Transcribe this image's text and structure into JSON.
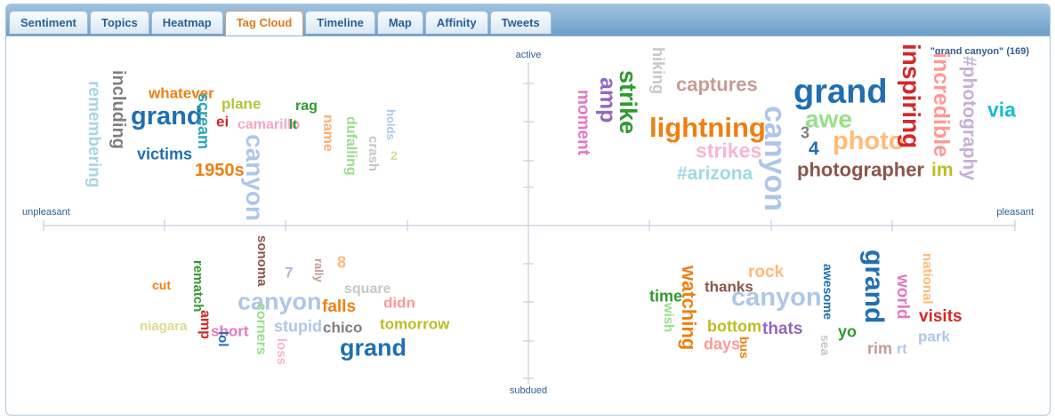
{
  "tabs": [
    {
      "label": "Sentiment"
    },
    {
      "label": "Topics"
    },
    {
      "label": "Heatmap"
    },
    {
      "label": "Tag Cloud"
    },
    {
      "label": "Timeline"
    },
    {
      "label": "Map"
    },
    {
      "label": "Affinity"
    },
    {
      "label": "Tweets"
    }
  ],
  "active_tab": "Tag Cloud",
  "axes": {
    "top": "active",
    "bottom": "subdued",
    "left": "unpleasant",
    "right": "pleasant"
  },
  "query_label": "\"grand canyon\" (169)",
  "words": [
    {
      "t": "including",
      "c": "#7f7f7f",
      "r": true
    },
    {
      "t": "remembering",
      "c": "#a6d6e6",
      "r": true
    },
    {
      "t": "whatever",
      "c": "#f07f10"
    },
    {
      "t": "grand",
      "c": "#1f6fb2"
    },
    {
      "t": "scream",
      "c": "#2aa5b8",
      "r": true
    },
    {
      "t": "plane",
      "c": "#b5c23a"
    },
    {
      "t": "rag",
      "c": "#2e9a2e"
    },
    {
      "t": "ei",
      "c": "#d62728"
    },
    {
      "t": "camarillo",
      "c": "#f4a6c8"
    },
    {
      "t": "lt",
      "c": "#2e9a2e"
    },
    {
      "t": "name",
      "c": "#ffb070",
      "r": true
    },
    {
      "t": "dufalling",
      "c": "#98df8a",
      "r": true
    },
    {
      "t": "holds",
      "c": "#aec7e8",
      "r": true
    },
    {
      "t": "crash",
      "c": "#c7c7c7",
      "r": true
    },
    {
      "t": "2",
      "c": "#dbdb8d"
    },
    {
      "t": "victims",
      "c": "#1f6fb2"
    },
    {
      "t": "1950s",
      "c": "#f07f10"
    },
    {
      "t": "canyon",
      "c": "#aec7e8",
      "r": true
    },
    {
      "t": "hiking",
      "c": "#c7c7c7",
      "r": true
    },
    {
      "t": "amp",
      "c": "#9467bd",
      "r": true
    },
    {
      "t": "strike",
      "c": "#2e9a2e",
      "r": true
    },
    {
      "t": "moment",
      "c": "#e377c2",
      "r": true
    },
    {
      "t": "captures",
      "c": "#c49c94"
    },
    {
      "t": "lightning",
      "c": "#f07f10"
    },
    {
      "t": "strikes",
      "c": "#f7b6d2"
    },
    {
      "t": "#arizona",
      "c": "#9edae5"
    },
    {
      "t": "canyon",
      "c": "#aec7e8",
      "r": true
    },
    {
      "t": "grand",
      "c": "#1f6fb2"
    },
    {
      "t": "awe",
      "c": "#98df8a"
    },
    {
      "t": "3",
      "c": "#7f7f7f"
    },
    {
      "t": "4",
      "c": "#1f6fb2"
    },
    {
      "t": "photo",
      "c": "#ffbb78"
    },
    {
      "t": "photographer",
      "c": "#8c564b"
    },
    {
      "t": "inspiring",
      "c": "#d62728",
      "r": true
    },
    {
      "t": "incredible",
      "c": "#ff9896",
      "r": true
    },
    {
      "t": "im",
      "c": "#bcbd22"
    },
    {
      "t": "#photography",
      "c": "#c5b0d5",
      "r": true
    },
    {
      "t": "via",
      "c": "#17becf"
    },
    {
      "t": "sonoma",
      "c": "#8c564b",
      "r": true
    },
    {
      "t": "cut",
      "c": "#f07f10"
    },
    {
      "t": "rematch",
      "c": "#2e9a2e",
      "r": true
    },
    {
      "t": "amp",
      "c": "#d62728",
      "r": true
    },
    {
      "t": "niagara",
      "c": "#dbdb8d"
    },
    {
      "t": "canyon",
      "c": "#aec7e8"
    },
    {
      "t": "7",
      "c": "#c5b0d5"
    },
    {
      "t": "rally",
      "c": "#c49c94",
      "r": true
    },
    {
      "t": "8",
      "c": "#ffbb78"
    },
    {
      "t": "square",
      "c": "#c7c7c7"
    },
    {
      "t": "falls",
      "c": "#f07f10"
    },
    {
      "t": "didn",
      "c": "#ff9896"
    },
    {
      "t": "short",
      "c": "#e377c2"
    },
    {
      "t": "lol",
      "c": "#1f6fb2",
      "r": true
    },
    {
      "t": "corners",
      "c": "#98df8a",
      "r": true
    },
    {
      "t": "stupid",
      "c": "#aec7e8"
    },
    {
      "t": "chico",
      "c": "#7f7f7f"
    },
    {
      "t": "tomorrow",
      "c": "#bcbd22"
    },
    {
      "t": "loss",
      "c": "#f7b6d2",
      "r": true
    },
    {
      "t": "grand",
      "c": "#1f6fb2"
    },
    {
      "t": "rock",
      "c": "#ffbb78"
    },
    {
      "t": "thanks",
      "c": "#8c564b"
    },
    {
      "t": "time",
      "c": "#2e9a2e"
    },
    {
      "t": "watching",
      "c": "#f07f10",
      "r": true
    },
    {
      "t": "wish",
      "c": "#98df8a",
      "r": true
    },
    {
      "t": "canyon",
      "c": "#aec7e8"
    },
    {
      "t": "bottom",
      "c": "#bcbd22"
    },
    {
      "t": "days",
      "c": "#ff9896"
    },
    {
      "t": "bus",
      "c": "#f07f10",
      "r": true
    },
    {
      "t": "thats",
      "c": "#9467bd"
    },
    {
      "t": "awesome",
      "c": "#1f6fb2",
      "r": true
    },
    {
      "t": "sea",
      "c": "#c7c7c7",
      "r": true
    },
    {
      "t": "yo",
      "c": "#2e9a2e"
    },
    {
      "t": "grand",
      "c": "#1f6fb2",
      "r": true
    },
    {
      "t": "world",
      "c": "#e377c2",
      "r": true
    },
    {
      "t": "national",
      "c": "#ffbb78",
      "r": true
    },
    {
      "t": "visits",
      "c": "#d62728"
    },
    {
      "t": "park",
      "c": "#aec7e8"
    },
    {
      "t": "rim",
      "c": "#c49c94"
    },
    {
      "t": "rt",
      "c": "#aec7e8"
    }
  ],
  "colors": {
    "axis": "#b7c5d3",
    "axis_text": "#2f5f90",
    "tab_text": "#2a5f93",
    "active_tab_text": "#e07818"
  }
}
